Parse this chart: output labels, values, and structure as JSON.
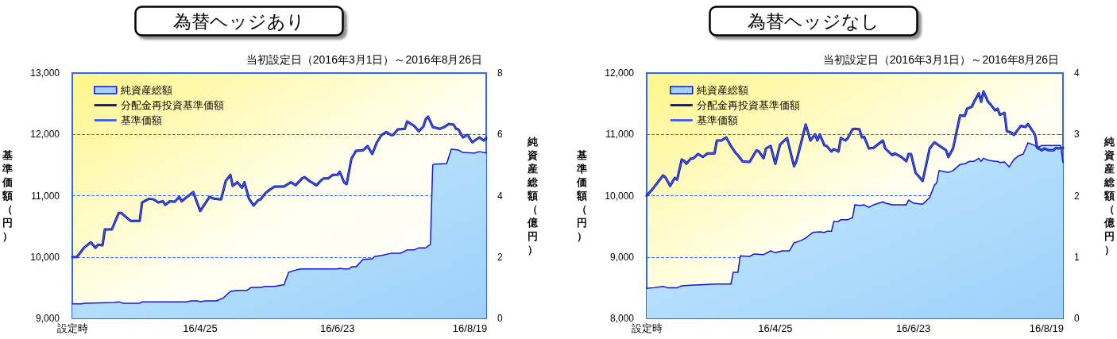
{
  "chart_data": [
    {
      "type": "line",
      "title": "為替ヘッジあり",
      "subtitle": "当初設定日（2016年3月1日）～2016年8月26日",
      "ylabel": "基準価額（円）",
      "y2label": "純資産総額（億円）",
      "xlim": [
        "2016-03-01",
        "2016-08-26"
      ],
      "xticks": [
        {
          "value": "2016-03-01",
          "label": "設定時"
        },
        {
          "value": "2016-04-25",
          "label": "16/4/25"
        },
        {
          "value": "2016-06-23",
          "label": "16/6/23"
        },
        {
          "value": "2016-08-19",
          "label": "16/8/19"
        }
      ],
      "ylim": [
        9000,
        13000
      ],
      "yticks": [
        {
          "value": 9000,
          "label": "9,000"
        },
        {
          "value": 10000,
          "label": "10,000"
        },
        {
          "value": 11000,
          "label": "11,000"
        },
        {
          "value": 12000,
          "label": "12,000"
        },
        {
          "value": 13000,
          "label": "13,000"
        }
      ],
      "y2lim": [
        0,
        8
      ],
      "y2ticks": [
        0,
        2,
        4,
        6,
        8
      ],
      "grid": "y",
      "legend": "top left",
      "marker": "none",
      "series": [
        {
          "name": "純資産総額",
          "type": "area",
          "axis": "y2",
          "color": "#9fd0fa",
          "x": [
            "2016-03-01",
            "2016-03-05",
            "2016-03-06",
            "2016-03-19",
            "2016-03-21",
            "2016-03-23",
            "2016-03-30",
            "2016-03-31",
            "2016-04-19",
            "2016-04-21",
            "2016-04-24",
            "2016-04-25",
            "2016-04-27",
            "2016-05-02",
            "2016-05-05",
            "2016-05-08",
            "2016-05-11",
            "2016-05-15",
            "2016-05-17",
            "2016-05-21",
            "2016-05-23",
            "2016-05-27",
            "2016-05-30",
            "2016-05-31",
            "2016-06-02",
            "2016-06-04",
            "2016-06-07",
            "2016-06-23",
            "2016-06-24",
            "2016-06-26",
            "2016-06-28",
            "2016-06-29",
            "2016-07-01",
            "2016-07-04",
            "2016-07-08",
            "2016-07-09",
            "2016-07-12",
            "2016-07-16",
            "2016-07-20",
            "2016-07-23",
            "2016-07-26",
            "2016-07-28",
            "2016-07-31",
            "2016-08-02",
            "2016-08-03",
            "2016-08-04",
            "2016-08-09",
            "2016-08-11",
            "2016-08-14",
            "2016-08-16",
            "2016-08-21",
            "2016-08-23",
            "2016-08-25",
            "2016-08-26"
          ],
          "values": [
            0.47,
            0.47,
            0.49,
            0.52,
            0.54,
            0.49,
            0.49,
            0.54,
            0.54,
            0.57,
            0.57,
            0.54,
            0.57,
            0.57,
            0.67,
            0.88,
            0.91,
            0.91,
            1.01,
            1.01,
            1.04,
            1.04,
            1.09,
            1.09,
            1.5,
            1.55,
            1.61,
            1.61,
            1.63,
            1.61,
            1.61,
            1.68,
            1.68,
            1.92,
            1.94,
            2.02,
            2.05,
            2.12,
            2.12,
            2.23,
            2.23,
            2.3,
            2.3,
            2.41,
            5.0,
            5.03,
            5.05,
            5.52,
            5.49,
            5.41,
            5.39,
            5.44,
            5.41,
            5.4
          ]
        },
        {
          "name": "分配金再投資基準価額",
          "type": "line",
          "color": "#0a0aa0",
          "x": [
            "2016-03-01",
            "2016-03-03",
            "2016-03-06",
            "2016-03-09",
            "2016-03-11",
            "2016-03-12",
            "2016-03-14",
            "2016-03-15",
            "2016-03-18",
            "2016-03-21",
            "2016-03-22",
            "2016-03-26",
            "2016-03-30",
            "2016-03-31",
            "2016-04-03",
            "2016-04-05",
            "2016-04-07",
            "2016-04-09",
            "2016-04-10",
            "2016-04-12",
            "2016-04-14",
            "2016-04-16",
            "2016-04-17",
            "2016-04-22",
            "2016-04-25",
            "2016-04-29",
            "2016-05-01",
            "2016-05-04",
            "2016-05-06",
            "2016-05-08",
            "2016-05-09",
            "2016-05-11",
            "2016-05-13",
            "2016-05-14",
            "2016-05-16",
            "2016-05-18",
            "2016-05-20",
            "2016-05-21",
            "2016-05-23",
            "2016-05-25",
            "2016-05-27",
            "2016-05-31",
            "2016-06-03",
            "2016-06-05",
            "2016-06-08",
            "2016-06-09",
            "2016-06-11",
            "2016-06-14",
            "2016-06-16",
            "2016-06-17",
            "2016-06-19",
            "2016-06-21",
            "2016-06-23",
            "2016-06-24",
            "2016-06-26",
            "2016-06-27",
            "2016-06-29",
            "2016-07-01",
            "2016-07-04",
            "2016-07-06",
            "2016-07-08",
            "2016-07-10",
            "2016-07-12",
            "2016-07-14",
            "2016-07-16",
            "2016-07-17",
            "2016-07-19",
            "2016-07-22",
            "2016-07-23",
            "2016-07-26",
            "2016-07-28",
            "2016-07-30",
            "2016-07-31",
            "2016-08-01",
            "2016-08-03",
            "2016-08-06",
            "2016-08-08",
            "2016-08-10",
            "2016-08-12",
            "2016-08-13",
            "2016-08-14",
            "2016-08-16",
            "2016-08-18",
            "2016-08-20",
            "2016-08-23",
            "2016-08-25",
            "2016-08-26"
          ],
          "values": [
            10000,
            10000,
            10150,
            10240,
            10150,
            10200,
            10190,
            10450,
            10450,
            10720,
            10720,
            10590,
            10590,
            10890,
            10950,
            10940,
            10890,
            10910,
            10850,
            10910,
            10900,
            10980,
            10910,
            11060,
            10750,
            10980,
            10950,
            10940,
            11240,
            11340,
            11160,
            11220,
            11130,
            11220,
            10950,
            10840,
            10930,
            10940,
            11040,
            11100,
            11150,
            11150,
            11220,
            11170,
            11290,
            11300,
            11240,
            11170,
            11250,
            11280,
            11280,
            11340,
            11340,
            11390,
            11210,
            11190,
            11600,
            11730,
            11740,
            11810,
            11680,
            11870,
            11990,
            12040,
            11990,
            11990,
            12080,
            12090,
            12210,
            12140,
            12050,
            12130,
            12250,
            12290,
            12120,
            12090,
            12120,
            12170,
            12160,
            12090,
            12080,
            11950,
            11990,
            11870,
            11950,
            11900,
            11940
          ]
        },
        {
          "name": "基準価額",
          "type": "line",
          "color": "#3a5cf0",
          "x": [
            "2016-03-01",
            "2016-03-03",
            "2016-03-06",
            "2016-03-09",
            "2016-03-11",
            "2016-03-12",
            "2016-03-14",
            "2016-03-15",
            "2016-03-18",
            "2016-03-21",
            "2016-03-22",
            "2016-03-26",
            "2016-03-30",
            "2016-03-31",
            "2016-04-03",
            "2016-04-05",
            "2016-04-07",
            "2016-04-09",
            "2016-04-10",
            "2016-04-12",
            "2016-04-14",
            "2016-04-16",
            "2016-04-17",
            "2016-04-22",
            "2016-04-25",
            "2016-04-29",
            "2016-05-01",
            "2016-05-04",
            "2016-05-06",
            "2016-05-08",
            "2016-05-09",
            "2016-05-11",
            "2016-05-13",
            "2016-05-14",
            "2016-05-16",
            "2016-05-18",
            "2016-05-20",
            "2016-05-21",
            "2016-05-23",
            "2016-05-25",
            "2016-05-27",
            "2016-05-31",
            "2016-06-03",
            "2016-06-05",
            "2016-06-08",
            "2016-06-09",
            "2016-06-11",
            "2016-06-14",
            "2016-06-16",
            "2016-06-17",
            "2016-06-19",
            "2016-06-21",
            "2016-06-23",
            "2016-06-24",
            "2016-06-26",
            "2016-06-27",
            "2016-06-29",
            "2016-07-01",
            "2016-07-04",
            "2016-07-06",
            "2016-07-08",
            "2016-07-10",
            "2016-07-12",
            "2016-07-14",
            "2016-07-16",
            "2016-07-17",
            "2016-07-19",
            "2016-07-22",
            "2016-07-23",
            "2016-07-26",
            "2016-07-28",
            "2016-07-30",
            "2016-07-31",
            "2016-08-01",
            "2016-08-03",
            "2016-08-06",
            "2016-08-08",
            "2016-08-10",
            "2016-08-12",
            "2016-08-13",
            "2016-08-14",
            "2016-08-16",
            "2016-08-18",
            "2016-08-20",
            "2016-08-23",
            "2016-08-25",
            "2016-08-26"
          ],
          "values": [
            10000,
            10000,
            10150,
            10240,
            10150,
            10200,
            10190,
            10450,
            10450,
            10720,
            10720,
            10590,
            10590,
            10890,
            10950,
            10940,
            10890,
            10910,
            10850,
            10910,
            10900,
            10980,
            10910,
            11060,
            10750,
            10980,
            10950,
            10940,
            11240,
            11340,
            11160,
            11220,
            11130,
            11220,
            10950,
            10840,
            10930,
            10940,
            11040,
            11100,
            11150,
            11150,
            11220,
            11170,
            11290,
            11300,
            11240,
            11170,
            11250,
            11280,
            11280,
            11340,
            11340,
            11390,
            11210,
            11190,
            11600,
            11730,
            11740,
            11810,
            11680,
            11870,
            11990,
            12040,
            11990,
            11990,
            12080,
            12090,
            12210,
            12140,
            12050,
            12130,
            12250,
            12290,
            12120,
            12090,
            12120,
            12170,
            12160,
            12090,
            12080,
            11950,
            11990,
            11870,
            11950,
            11900,
            11940
          ]
        }
      ]
    },
    {
      "type": "line",
      "title": "為替ヘッジなし",
      "subtitle": "当初設定日（2016年3月1日）～2016年8月26日",
      "ylabel": "基準価額（円）",
      "y2label": "純資産総額（億円）",
      "xlim": [
        "2016-03-01",
        "2016-08-26"
      ],
      "xticks": [
        {
          "value": "2016-03-01",
          "label": "設定時"
        },
        {
          "value": "2016-04-25",
          "label": "16/4/25"
        },
        {
          "value": "2016-06-23",
          "label": "16/6/23"
        },
        {
          "value": "2016-08-19",
          "label": "16/8/19"
        }
      ],
      "ylim": [
        8000,
        12000
      ],
      "yticks": [
        {
          "value": 8000,
          "label": "8,000"
        },
        {
          "value": 9000,
          "label": "9,000"
        },
        {
          "value": 10000,
          "label": "10,000"
        },
        {
          "value": 11000,
          "label": "11,000"
        },
        {
          "value": 12000,
          "label": "12,000"
        }
      ],
      "y2lim": [
        0,
        4
      ],
      "y2ticks": [
        0,
        1,
        2,
        3,
        4
      ],
      "grid": "y",
      "legend": "top left",
      "marker": "none",
      "series": [
        {
          "name": "純資産総額",
          "type": "area",
          "axis": "y2",
          "color": "#9fd0fa",
          "x": [
            "2016-03-01",
            "2016-03-04",
            "2016-03-08",
            "2016-03-10",
            "2016-03-14",
            "2016-03-16",
            "2016-03-20",
            "2016-03-31",
            "2016-04-03",
            "2016-04-06",
            "2016-04-07",
            "2016-04-09",
            "2016-04-10",
            "2016-04-14",
            "2016-04-16",
            "2016-04-20",
            "2016-04-23",
            "2016-04-25",
            "2016-04-28",
            "2016-05-01",
            "2016-05-03",
            "2016-05-06",
            "2016-05-08",
            "2016-05-11",
            "2016-05-14",
            "2016-05-16",
            "2016-05-17",
            "2016-05-19",
            "2016-05-20",
            "2016-05-22",
            "2016-05-23",
            "2016-05-26",
            "2016-05-28",
            "2016-05-29",
            "2016-05-31",
            "2016-06-02",
            "2016-06-04",
            "2016-06-06",
            "2016-06-10",
            "2016-06-11",
            "2016-06-14",
            "2016-06-20",
            "2016-06-21",
            "2016-06-23",
            "2016-06-27",
            "2016-06-30",
            "2016-07-02",
            "2016-07-03",
            "2016-07-04",
            "2016-07-08",
            "2016-07-10",
            "2016-07-13",
            "2016-07-15",
            "2016-07-17",
            "2016-07-19",
            "2016-07-21",
            "2016-07-22",
            "2016-07-23",
            "2016-07-25",
            "2016-07-28",
            "2016-07-29",
            "2016-07-30",
            "2016-08-01",
            "2016-08-03",
            "2016-08-05",
            "2016-08-07",
            "2016-08-09",
            "2016-08-11",
            "2016-08-14",
            "2016-08-15",
            "2016-08-17",
            "2016-08-22",
            "2016-08-25",
            "2016-08-26"
          ],
          "values": [
            0.49,
            0.5,
            0.52,
            0.5,
            0.5,
            0.53,
            0.54,
            0.56,
            0.56,
            0.56,
            0.75,
            0.75,
            1.02,
            1.01,
            1.05,
            1.04,
            1.1,
            1.07,
            1.1,
            1.1,
            1.23,
            1.27,
            1.31,
            1.4,
            1.41,
            1.4,
            1.42,
            1.42,
            1.58,
            1.58,
            1.61,
            1.61,
            1.64,
            1.85,
            1.84,
            1.85,
            1.81,
            1.85,
            1.9,
            1.88,
            1.85,
            1.85,
            1.93,
            1.88,
            1.86,
            1.97,
            2.17,
            2.21,
            2.41,
            2.38,
            2.41,
            2.51,
            2.52,
            2.56,
            2.56,
            2.61,
            2.56,
            2.61,
            2.58,
            2.56,
            2.56,
            2.54,
            2.55,
            2.47,
            2.59,
            2.65,
            2.68,
            2.86,
            2.82,
            2.78,
            2.82,
            2.82,
            2.82,
            2.54
          ]
        },
        {
          "name": "分配金再投資基準価額",
          "type": "line",
          "color": "#0a0aa0",
          "x": [
            "2016-03-01",
            "2016-03-04",
            "2016-03-08",
            "2016-03-09",
            "2016-03-11",
            "2016-03-13",
            "2016-03-14",
            "2016-03-16",
            "2016-03-17",
            "2016-03-18",
            "2016-03-20",
            "2016-03-21",
            "2016-03-23",
            "2016-03-25",
            "2016-03-27",
            "2016-03-30",
            "2016-03-31",
            "2016-04-02",
            "2016-04-04",
            "2016-04-06",
            "2016-04-08",
            "2016-04-09",
            "2016-04-11",
            "2016-04-14",
            "2016-04-17",
            "2016-04-18",
            "2016-04-20",
            "2016-04-21",
            "2016-04-23",
            "2016-04-25",
            "2016-04-27",
            "2016-04-28",
            "2016-04-30",
            "2016-05-03",
            "2016-05-04",
            "2016-05-06",
            "2016-05-08",
            "2016-05-10",
            "2016-05-12",
            "2016-05-13",
            "2016-05-14",
            "2016-05-16",
            "2016-05-17",
            "2016-05-19",
            "2016-05-20",
            "2016-05-22",
            "2016-05-23",
            "2016-05-25",
            "2016-05-26",
            "2016-05-28",
            "2016-05-29",
            "2016-05-31",
            "2016-06-01",
            "2016-06-02",
            "2016-06-04",
            "2016-06-06",
            "2016-06-10",
            "2016-06-11",
            "2016-06-14",
            "2016-06-15",
            "2016-06-18",
            "2016-06-20",
            "2016-06-21",
            "2016-06-22",
            "2016-06-24",
            "2016-06-25",
            "2016-06-27",
            "2016-06-30",
            "2016-07-02",
            "2016-07-04",
            "2016-07-07",
            "2016-07-08",
            "2016-07-10",
            "2016-07-13",
            "2016-07-15",
            "2016-07-16",
            "2016-07-18",
            "2016-07-19",
            "2016-07-21",
            "2016-07-22",
            "2016-07-23",
            "2016-07-25",
            "2016-07-26",
            "2016-07-28",
            "2016-07-29",
            "2016-07-30",
            "2016-08-01",
            "2016-08-02",
            "2016-08-04",
            "2016-08-05",
            "2016-08-07",
            "2016-08-08",
            "2016-08-10",
            "2016-08-11",
            "2016-08-14",
            "2016-08-15",
            "2016-08-17",
            "2016-08-18",
            "2016-08-20",
            "2016-08-22",
            "2016-08-23",
            "2016-08-24",
            "2016-08-26"
          ],
          "values": [
            10000,
            10130,
            10330,
            10300,
            10160,
            10290,
            10260,
            10590,
            10570,
            10520,
            10610,
            10610,
            10680,
            10630,
            10690,
            10690,
            10900,
            10900,
            10950,
            10810,
            10700,
            10660,
            10560,
            10550,
            10740,
            10720,
            10610,
            10770,
            10810,
            10520,
            10830,
            10870,
            10940,
            10480,
            10560,
            10860,
            11160,
            10900,
            11000,
            10900,
            11000,
            10820,
            10810,
            10720,
            10760,
            10720,
            10940,
            10900,
            10940,
            11080,
            11090,
            11080,
            10950,
            10960,
            10770,
            10780,
            10900,
            10770,
            10660,
            10690,
            10630,
            10560,
            10680,
            10680,
            10370,
            10330,
            10240,
            10770,
            10870,
            10820,
            10740,
            10630,
            10770,
            11310,
            11300,
            11420,
            11450,
            11530,
            11670,
            11530,
            11700,
            11530,
            11490,
            11390,
            11420,
            11320,
            11350,
            11050,
            11030,
            10990,
            11090,
            11140,
            11120,
            11170,
            11000,
            10780,
            10740,
            10770,
            10740,
            10740,
            10780,
            10770,
            10780
          ]
        },
        {
          "name": "基準価額",
          "type": "line",
          "color": "#3a5cf0",
          "x": [
            "2016-03-01",
            "2016-03-04",
            "2016-03-08",
            "2016-03-09",
            "2016-03-11",
            "2016-03-13",
            "2016-03-14",
            "2016-03-16",
            "2016-03-17",
            "2016-03-18",
            "2016-03-20",
            "2016-03-21",
            "2016-03-23",
            "2016-03-25",
            "2016-03-27",
            "2016-03-30",
            "2016-03-31",
            "2016-04-02",
            "2016-04-04",
            "2016-04-06",
            "2016-04-08",
            "2016-04-09",
            "2016-04-11",
            "2016-04-14",
            "2016-04-17",
            "2016-04-18",
            "2016-04-20",
            "2016-04-21",
            "2016-04-23",
            "2016-04-25",
            "2016-04-27",
            "2016-04-28",
            "2016-04-30",
            "2016-05-03",
            "2016-05-04",
            "2016-05-06",
            "2016-05-08",
            "2016-05-10",
            "2016-05-12",
            "2016-05-13",
            "2016-05-14",
            "2016-05-16",
            "2016-05-17",
            "2016-05-19",
            "2016-05-20",
            "2016-05-22",
            "2016-05-23",
            "2016-05-25",
            "2016-05-26",
            "2016-05-28",
            "2016-05-29",
            "2016-05-31",
            "2016-06-01",
            "2016-06-02",
            "2016-06-04",
            "2016-06-06",
            "2016-06-10",
            "2016-06-11",
            "2016-06-14",
            "2016-06-15",
            "2016-06-18",
            "2016-06-20",
            "2016-06-21",
            "2016-06-22",
            "2016-06-24",
            "2016-06-25",
            "2016-06-27",
            "2016-06-30",
            "2016-07-02",
            "2016-07-04",
            "2016-07-07",
            "2016-07-08",
            "2016-07-10",
            "2016-07-13",
            "2016-07-15",
            "2016-07-16",
            "2016-07-18",
            "2016-07-19",
            "2016-07-21",
            "2016-07-22",
            "2016-07-23",
            "2016-07-25",
            "2016-07-26",
            "2016-07-28",
            "2016-07-29",
            "2016-07-30",
            "2016-08-01",
            "2016-08-02",
            "2016-08-04",
            "2016-08-05",
            "2016-08-07",
            "2016-08-08",
            "2016-08-10",
            "2016-08-11",
            "2016-08-14",
            "2016-08-15",
            "2016-08-17",
            "2016-08-18",
            "2016-08-20",
            "2016-08-22",
            "2016-08-23",
            "2016-08-24",
            "2016-08-26"
          ],
          "values": [
            10000,
            10130,
            10330,
            10300,
            10160,
            10290,
            10260,
            10590,
            10570,
            10520,
            10610,
            10610,
            10680,
            10630,
            10690,
            10690,
            10900,
            10900,
            10950,
            10810,
            10700,
            10660,
            10560,
            10550,
            10740,
            10720,
            10610,
            10770,
            10810,
            10520,
            10830,
            10870,
            10940,
            10480,
            10560,
            10860,
            11160,
            10900,
            11000,
            10900,
            11000,
            10820,
            10810,
            10720,
            10760,
            10720,
            10940,
            10900,
            10940,
            11080,
            11090,
            11080,
            10950,
            10960,
            10770,
            10780,
            10900,
            10770,
            10660,
            10690,
            10630,
            10560,
            10680,
            10680,
            10370,
            10330,
            10240,
            10770,
            10870,
            10820,
            10740,
            10630,
            10770,
            11310,
            11300,
            11420,
            11450,
            11530,
            11670,
            11530,
            11700,
            11530,
            11490,
            11390,
            11420,
            11320,
            11350,
            11050,
            11030,
            10990,
            11090,
            11140,
            11120,
            11170,
            11000,
            10780,
            10740,
            10770,
            10740,
            10740,
            10780,
            10770,
            10780
          ]
        }
      ]
    }
  ]
}
